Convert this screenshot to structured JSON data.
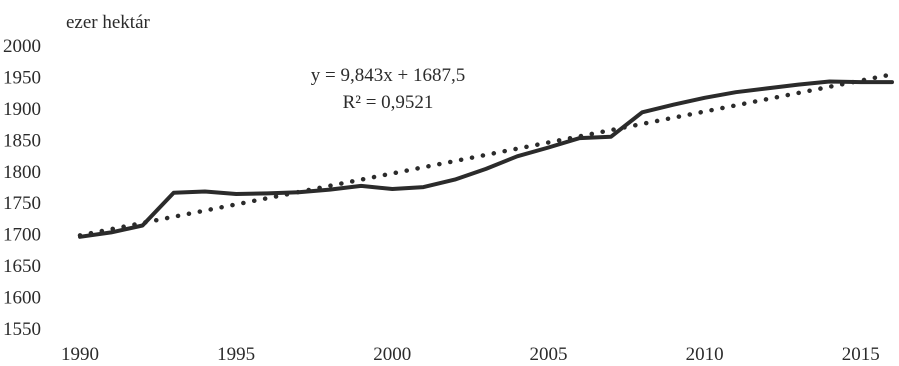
{
  "chart_data": {
    "type": "line",
    "unit_label": "ezer hektár",
    "x": [
      1990,
      1991,
      1992,
      1993,
      1994,
      1995,
      1996,
      1997,
      1998,
      1999,
      2000,
      2001,
      2002,
      2003,
      2004,
      2005,
      2006,
      2007,
      2008,
      2009,
      2010,
      2011,
      2012,
      2013,
      2014,
      2015,
      2016
    ],
    "series": [
      {
        "style": "solid",
        "values": [
          1695,
          1702,
          1713,
          1765,
          1767,
          1763,
          1764,
          1766,
          1770,
          1776,
          1771,
          1774,
          1786,
          1803,
          1823,
          1837,
          1852,
          1854,
          1893,
          1905,
          1916,
          1925,
          1931,
          1937,
          1942,
          1941,
          1941
        ]
      }
    ],
    "trendline": {
      "style": "dotted",
      "slope": 9.843,
      "intercept": 1687.5,
      "equation": "y = 9,843x + 1687,5",
      "r_squared": "R² = 0,9521"
    },
    "x_ticks": [
      "1990",
      "1995",
      "2000",
      "2005",
      "2010",
      "2015"
    ],
    "x_tick_values": [
      1990,
      1995,
      2000,
      2005,
      2010,
      2015
    ],
    "y_ticks": [
      "2000",
      "1950",
      "1900",
      "1850",
      "1800",
      "1750",
      "1700",
      "1650",
      "1600",
      "1550"
    ],
    "y_tick_values": [
      2000,
      1950,
      1900,
      1850,
      1800,
      1750,
      1700,
      1650,
      1600,
      1550
    ],
    "xlim": [
      1990,
      2016
    ],
    "ylim": [
      1550,
      2000
    ],
    "grid": false,
    "line_color": "#2b2b2b"
  }
}
